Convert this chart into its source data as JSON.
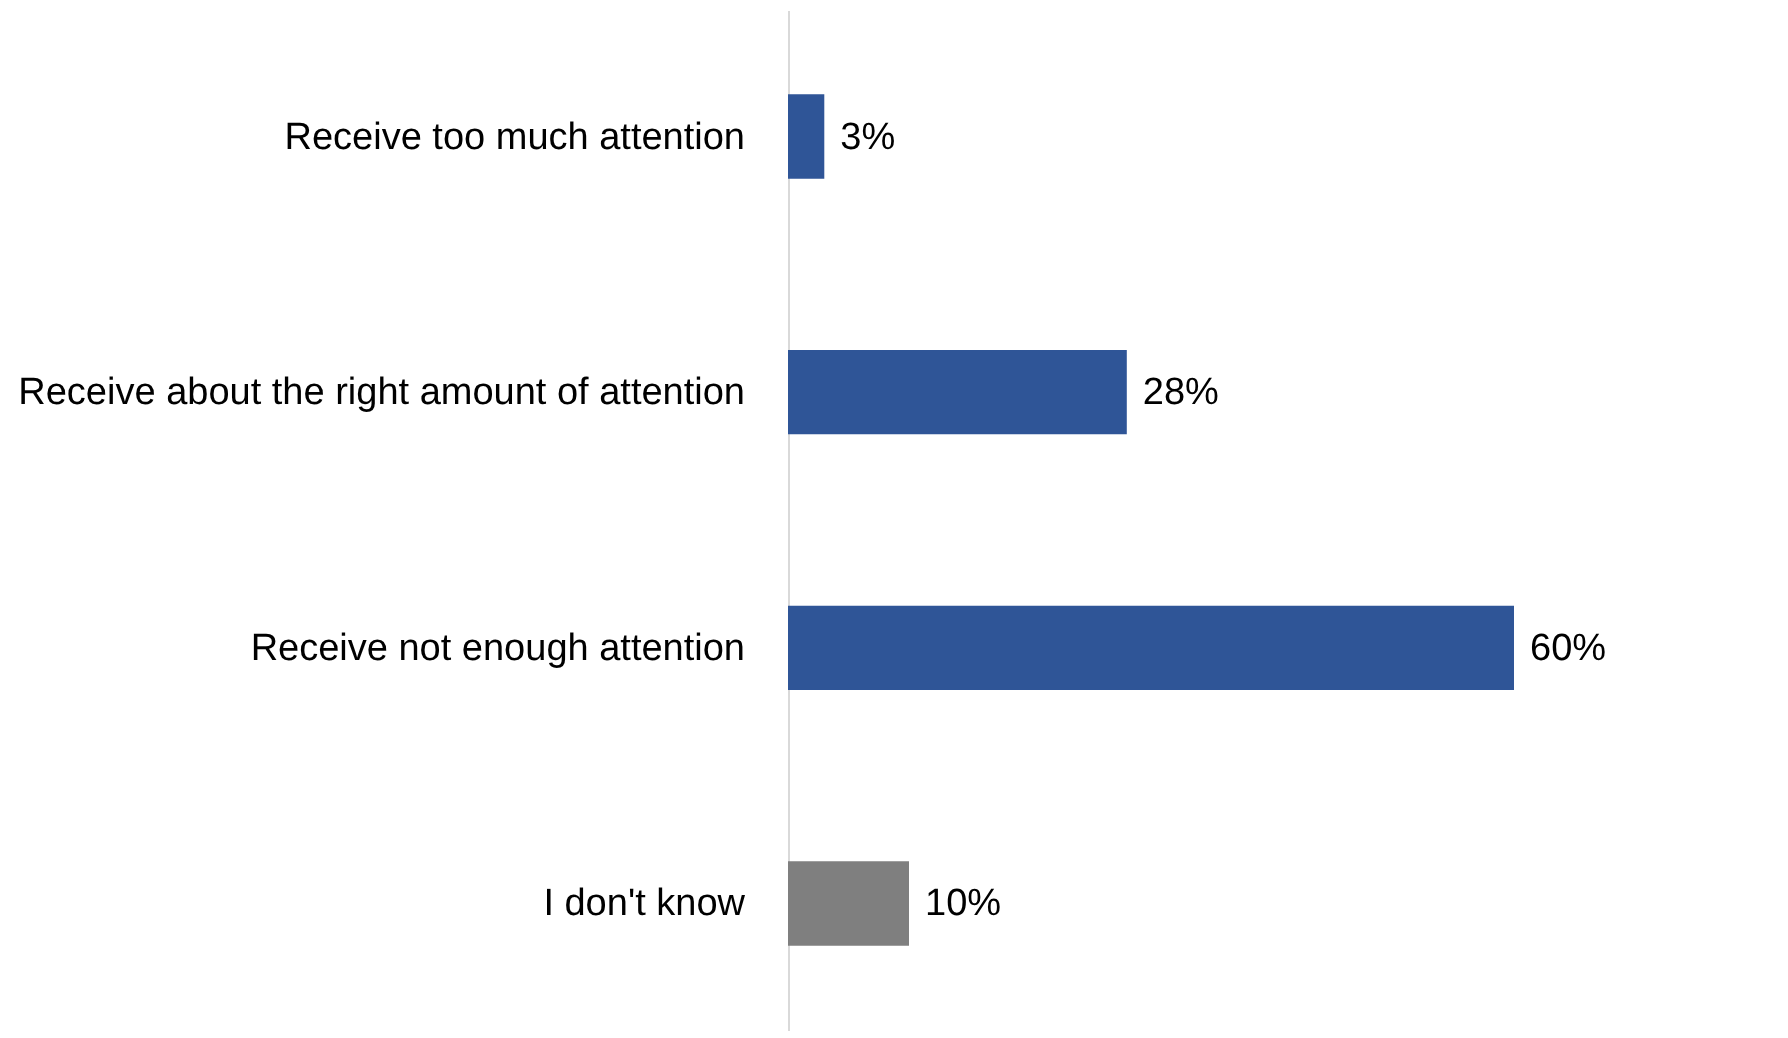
{
  "chart_data": {
    "type": "bar",
    "orientation": "horizontal",
    "categories": [
      "Receive too much attention",
      "Receive about the right amount of attention",
      "Receive not enough attention",
      "I don't know"
    ],
    "values": [
      3,
      28,
      60,
      10
    ],
    "colors": [
      "#2f5597",
      "#2f5597",
      "#2f5597",
      "#7f7f7f"
    ],
    "value_labels": [
      "3%",
      "28%",
      "60%",
      "10%"
    ]
  }
}
